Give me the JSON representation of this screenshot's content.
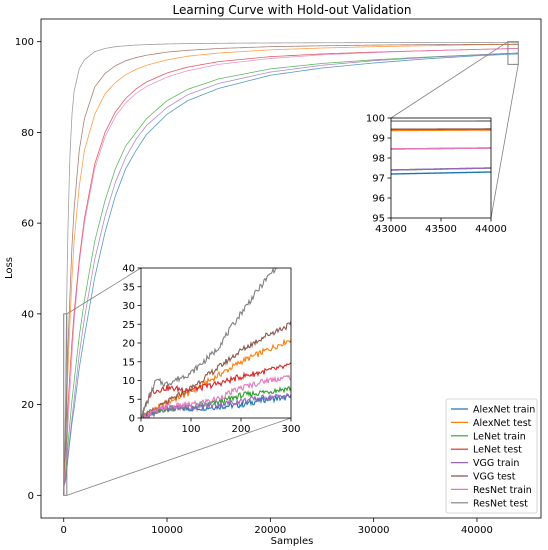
{
  "chart_data": {
    "type": "line",
    "title": "Learning Curve with Hold-out Validation",
    "xlabel": "Samples",
    "ylabel": "Loss",
    "xlim": [
      -2200,
      46200
    ],
    "ylim": [
      -5,
      105
    ],
    "xticks": [
      0,
      10000,
      20000,
      30000,
      40000
    ],
    "xtick_labels": [
      "0",
      "10000",
      "20000",
      "30000",
      "40000"
    ],
    "yticks": [
      0,
      20,
      40,
      60,
      80,
      100
    ],
    "ytick_labels": [
      "0",
      "20",
      "40",
      "60",
      "80",
      "100"
    ],
    "legend_position": "lower-right",
    "series": [
      {
        "name": "AlexNet train",
        "color": "#1f77b4",
        "x": [
          0,
          50,
          100,
          150,
          200,
          250,
          300,
          400,
          600,
          800,
          1000,
          1500,
          2000,
          3000,
          4000,
          5000,
          6000,
          7000,
          8000,
          10000,
          12000,
          15000,
          20000,
          25000,
          30000,
          35000,
          40000,
          44000
        ],
        "y": [
          0,
          2.5,
          2.5,
          3,
          3.5,
          5,
          5.5,
          8,
          12,
          16,
          19,
          28,
          35,
          48,
          58,
          66,
          72,
          76,
          79.5,
          84,
          87,
          89.7,
          92.6,
          94.2,
          95.3,
          96.2,
          96.9,
          97.3
        ]
      },
      {
        "name": "AlexNet test",
        "color": "#ff7f0e",
        "x": [
          0,
          50,
          100,
          150,
          200,
          250,
          300,
          400,
          600,
          800,
          1000,
          1500,
          2000,
          3000,
          4000,
          5000,
          6000,
          7000,
          8000,
          10000,
          12000,
          15000,
          20000,
          25000,
          30000,
          35000,
          40000,
          44000
        ],
        "y": [
          0,
          4,
          7,
          11,
          15,
          18,
          21,
          27,
          38,
          48,
          56,
          68,
          76,
          84,
          88.5,
          91,
          92.7,
          93.9,
          94.8,
          96,
          96.8,
          97.5,
          98.2,
          98.6,
          98.9,
          99.1,
          99.3,
          99.4
        ]
      },
      {
        "name": "LeNet train",
        "color": "#2ca02c",
        "x": [
          0,
          50,
          100,
          150,
          200,
          250,
          300,
          400,
          600,
          800,
          1000,
          1500,
          2000,
          3000,
          4000,
          5000,
          6000,
          7000,
          8000,
          10000,
          12000,
          15000,
          20000,
          25000,
          30000,
          35000,
          40000,
          44000
        ],
        "y": [
          0,
          2.5,
          3,
          4,
          6,
          7,
          8,
          11,
          16,
          21,
          25,
          35,
          43,
          56,
          65,
          72,
          77,
          80,
          83,
          87,
          89.5,
          91.8,
          94,
          95.2,
          96,
          96.6,
          97.1,
          97.5
        ]
      },
      {
        "name": "LeNet test",
        "color": "#d62728",
        "x": [
          0,
          20,
          50,
          100,
          150,
          200,
          250,
          300,
          400,
          600,
          800,
          1000,
          1500,
          2000,
          3000,
          4000,
          5000,
          6000,
          7000,
          8000,
          10000,
          12000,
          15000,
          20000,
          25000,
          30000,
          35000,
          40000,
          44000
        ],
        "y": [
          0,
          7,
          8,
          7.5,
          9,
          11,
          12.5,
          14,
          19,
          27,
          34,
          40,
          52,
          61,
          73,
          80,
          84.5,
          87.5,
          89.6,
          91.1,
          93.1,
          94.4,
          95.6,
          96.7,
          97.3,
          97.7,
          98,
          98.3,
          98.5
        ]
      },
      {
        "name": "VGG train",
        "color": "#9467bd",
        "x": [
          0,
          50,
          100,
          150,
          200,
          250,
          300,
          400,
          600,
          800,
          1000,
          1500,
          2000,
          3000,
          4000,
          5000,
          6000,
          7000,
          8000,
          10000,
          12000,
          15000,
          20000,
          25000,
          30000,
          35000,
          40000,
          44000
        ],
        "y": [
          0,
          2.5,
          2.8,
          3.5,
          4.5,
          5.5,
          6,
          8.5,
          13,
          17,
          21,
          31,
          39,
          52,
          61.5,
          69,
          74.5,
          78.5,
          81.5,
          85.5,
          88.3,
          90.8,
          93.3,
          94.8,
          95.8,
          96.5,
          97.1,
          97.5
        ]
      },
      {
        "name": "VGG test",
        "color": "#8c564b",
        "x": [
          0,
          50,
          100,
          150,
          200,
          250,
          300,
          400,
          600,
          800,
          1000,
          1500,
          2000,
          3000,
          4000,
          5000,
          6000,
          7000,
          8000,
          10000,
          12000,
          15000,
          20000,
          25000,
          30000,
          35000,
          40000,
          44000
        ],
        "y": [
          0,
          4,
          8,
          13,
          18,
          22,
          25,
          32,
          44,
          55,
          63,
          76,
          83,
          90,
          93,
          94.7,
          95.8,
          96.5,
          97,
          97.7,
          98.1,
          98.5,
          98.9,
          99.1,
          99.25,
          99.35,
          99.4,
          99.45
        ]
      },
      {
        "name": "ResNet train",
        "color": "#e377c2",
        "x": [
          0,
          50,
          100,
          150,
          200,
          250,
          300,
          400,
          600,
          800,
          1000,
          1500,
          2000,
          3000,
          4000,
          5000,
          6000,
          7000,
          8000,
          10000,
          12000,
          15000,
          20000,
          25000,
          30000,
          35000,
          40000,
          44000
        ],
        "y": [
          0,
          3,
          3.5,
          5,
          8,
          10,
          11,
          15,
          23,
          31,
          38,
          51,
          60,
          72,
          79,
          83.5,
          86.5,
          88.6,
          90.1,
          92.2,
          93.6,
          95,
          96.3,
          97.1,
          97.6,
          98,
          98.3,
          98.5
        ]
      },
      {
        "name": "ResNet test",
        "color": "#7f7f7f",
        "x": [
          0,
          30,
          50,
          100,
          150,
          200,
          250,
          300,
          400,
          600,
          800,
          1000,
          1500,
          2000,
          3000,
          4000,
          5000,
          6000,
          7000,
          8000,
          10000,
          12000,
          15000,
          20000,
          25000,
          30000,
          35000,
          40000,
          44000
        ],
        "y": [
          0,
          10,
          9,
          12,
          18,
          28,
          37,
          45,
          58,
          75,
          84,
          89,
          94,
          96,
          97.8,
          98.5,
          98.9,
          99.1,
          99.25,
          99.35,
          99.5,
          99.58,
          99.65,
          99.72,
          99.76,
          99.79,
          99.81,
          99.83,
          99.85
        ]
      }
    ],
    "insets": [
      {
        "name": "zoom-early",
        "xlim": [
          0,
          300
        ],
        "ylim": [
          0,
          40
        ],
        "xticks": [
          0,
          100,
          200,
          300
        ],
        "xtick_labels": [
          "0",
          "100",
          "200",
          "300"
        ],
        "yticks": [
          0,
          5,
          10,
          15,
          20,
          25,
          30,
          35,
          40
        ],
        "ytick_labels": [
          "0",
          "5",
          "10",
          "15",
          "20",
          "25",
          "30",
          "35",
          "40"
        ]
      },
      {
        "name": "zoom-late",
        "xlim": [
          43000,
          44000
        ],
        "ylim": [
          95,
          100
        ],
        "xticks": [
          43000,
          43500,
          44000
        ],
        "xtick_labels": [
          "43000",
          "43500",
          "44000"
        ],
        "yticks": [
          95,
          96,
          97,
          98,
          99,
          100
        ],
        "ytick_labels": [
          "95",
          "96",
          "97",
          "98",
          "99",
          "100"
        ]
      }
    ]
  }
}
